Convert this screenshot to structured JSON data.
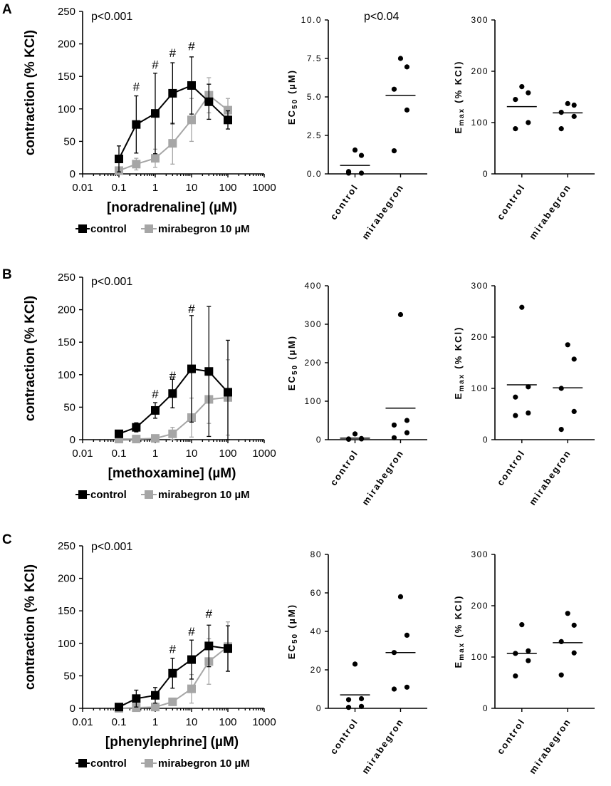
{
  "panels": [
    {
      "letter": "A",
      "curve": {
        "type": "line",
        "ylabel": "contraction (% KCl)",
        "xlabel": "[noradrenaline] (µM)",
        "xscale": "log",
        "xlim": [
          0.01,
          1000
        ],
        "ylim": [
          0,
          250
        ],
        "xticks": [
          "0.01",
          "0.1",
          "1",
          "10",
          "100",
          "1000"
        ],
        "yticks": [
          "0",
          "50",
          "100",
          "150",
          "200",
          "250"
        ],
        "pvalue": "p<0.001",
        "legend": [
          "control",
          "mirabegron 10 µM"
        ],
        "series": [
          {
            "name": "control",
            "color": "#000000",
            "x": [
              0.1,
              0.3,
              1,
              3,
              10,
              30,
              100
            ],
            "y": [
              23,
              76,
              93,
              124,
              136,
              111,
              83
            ],
            "err": [
              20,
              44,
              62,
              47,
              44,
              27,
              14
            ]
          },
          {
            "name": "mirabegron 10 µM",
            "color": "#a6a6a6",
            "x": [
              0.1,
              0.3,
              1,
              3,
              10,
              30,
              100
            ],
            "y": [
              5,
              15,
              24,
              47,
              83,
              121,
              98
            ],
            "err": [
              5,
              9,
              14,
              32,
              33,
              27,
              18
            ]
          }
        ],
        "hash_marker": "#",
        "hash_at": [
          0.3,
          1,
          3,
          10
        ],
        "hash_y": [
          128,
          162,
          180,
          190
        ]
      },
      "ec50": {
        "type": "scatter",
        "ylabel_main": "EC",
        "ylabel_sub": "50",
        "ylabel_unit": "(µM)",
        "ylim": [
          0,
          10
        ],
        "yticks": [
          "0.0",
          "2.5",
          "5.0",
          "7.5",
          "10.0"
        ],
        "pvalue": "p<0.04",
        "categories": [
          "control",
          "mirabegron"
        ],
        "points": [
          [
            0.05,
            0.05,
            0.15,
            1.2,
            1.55
          ],
          [
            1.5,
            4.15,
            5.5,
            6.95,
            7.5
          ]
        ],
        "means": [
          0.55,
          5.1
        ]
      },
      "emax": {
        "type": "scatter",
        "ylabel_main": "E",
        "ylabel_sub": "max",
        "ylabel_unit": "(% KCl)",
        "ylim": [
          0,
          300
        ],
        "yticks": [
          "0",
          "100",
          "200",
          "300"
        ],
        "categories": [
          "control",
          "mirabegron"
        ],
        "points": [
          [
            88,
            100,
            145,
            158,
            170
          ],
          [
            88,
            112,
            120,
            134,
            137
          ]
        ],
        "means": [
          131,
          119
        ]
      }
    },
    {
      "letter": "B",
      "curve": {
        "type": "line",
        "ylabel": "contraction (% KCl)",
        "xlabel": "[methoxamine] (µM)",
        "xscale": "log",
        "xlim": [
          0.01,
          1000
        ],
        "ylim": [
          0,
          250
        ],
        "xticks": [
          "0.01",
          "0.1",
          "1",
          "10",
          "100",
          "1000"
        ],
        "yticks": [
          "0",
          "50",
          "100",
          "150",
          "200",
          "250"
        ],
        "pvalue": "p<0.001",
        "legend": [
          "control",
          "mirabegron 10 µM"
        ],
        "series": [
          {
            "name": "control",
            "color": "#000000",
            "x": [
              0.1,
              0.3,
              1,
              3,
              10,
              30,
              100
            ],
            "y": [
              9,
              19,
              45,
              71,
              109,
              105,
              73
            ],
            "err": [
              5,
              7,
              12,
              22,
              82,
              100,
              80
            ]
          },
          {
            "name": "mirabegron 10 µM",
            "color": "#a6a6a6",
            "x": [
              0.1,
              0.3,
              1,
              3,
              10,
              30,
              100
            ],
            "y": [
              1,
              1,
              2,
              9,
              34,
              62,
              65
            ],
            "err": [
              1,
              1,
              3,
              10,
              30,
              37,
              58
            ]
          }
        ],
        "hash_marker": "#",
        "hash_at": [
          1,
          3,
          10
        ],
        "hash_y": [
          64,
          92,
          195
        ]
      },
      "ec50": {
        "type": "scatter",
        "ylabel_main": "EC",
        "ylabel_sub": "50",
        "ylabel_unit": "(µM)",
        "ylim": [
          0,
          400
        ],
        "yticks": [
          "0",
          "100",
          "200",
          "300",
          "400"
        ],
        "categories": [
          "control",
          "mirabegron"
        ],
        "points": [
          [
            1,
            2,
            2,
            3,
            15
          ],
          [
            5,
            18,
            38,
            50,
            325
          ]
        ],
        "means": [
          4,
          82
        ]
      },
      "emax": {
        "type": "scatter",
        "ylabel_main": "E",
        "ylabel_sub": "max",
        "ylabel_unit": "(% KCl)",
        "ylim": [
          0,
          300
        ],
        "yticks": [
          "0",
          "100",
          "200",
          "300"
        ],
        "categories": [
          "control",
          "mirabegron"
        ],
        "points": [
          [
            47,
            52,
            83,
            103,
            258
          ],
          [
            20,
            55,
            100,
            157,
            185
          ]
        ],
        "means": [
          107,
          101
        ]
      }
    },
    {
      "letter": "C",
      "curve": {
        "type": "line",
        "ylabel": "contraction (% KCl)",
        "xlabel": "[phenylephrine] (µM)",
        "xscale": "log",
        "xlim": [
          0.01,
          1000
        ],
        "ylim": [
          0,
          250
        ],
        "xticks": [
          "0.01",
          "0.1",
          "1",
          "10",
          "100",
          "1000"
        ],
        "yticks": [
          "0",
          "50",
          "100",
          "150",
          "200",
          "250"
        ],
        "pvalue": "p<0.001",
        "legend": [
          "control",
          "mirabegron 10 µM"
        ],
        "series": [
          {
            "name": "control",
            "color": "#000000",
            "x": [
              0.1,
              0.3,
              1,
              3,
              10,
              30,
              100
            ],
            "y": [
              2,
              15,
              20,
              54,
              75,
              96,
              92
            ],
            "err": [
              5,
              13,
              12,
              23,
              30,
              32,
              35
            ]
          },
          {
            "name": "mirabegron 10 µM",
            "color": "#a6a6a6",
            "x": [
              0.1,
              0.3,
              1,
              3,
              10,
              30,
              100
            ],
            "y": [
              0,
              1,
              2,
              10,
              30,
              72,
              95
            ],
            "err": [
              1,
              1,
              3,
              5,
              22,
              35,
              38
            ]
          }
        ],
        "hash_marker": "#",
        "hash_at": [
          3,
          10,
          30
        ],
        "hash_y": [
          85,
          112,
          139
        ]
      },
      "ec50": {
        "type": "scatter",
        "ylabel_main": "EC",
        "ylabel_sub": "50",
        "ylabel_unit": "(µM)",
        "ylim": [
          0,
          80
        ],
        "yticks": [
          "0",
          "20",
          "40",
          "60",
          "80"
        ],
        "categories": [
          "control",
          "mirabegron"
        ],
        "points": [
          [
            0.5,
            1,
            4.5,
            5,
            23
          ],
          [
            10,
            11,
            29,
            38,
            58
          ]
        ],
        "means": [
          7,
          29
        ]
      },
      "emax": {
        "type": "scatter",
        "ylabel_main": "E",
        "ylabel_sub": "max",
        "ylabel_unit": "(% KCl)",
        "ylim": [
          0,
          300
        ],
        "yticks": [
          "0",
          "100",
          "200",
          "300"
        ],
        "categories": [
          "control",
          "mirabegron"
        ],
        "points": [
          [
            63,
            93,
            107,
            112,
            163
          ],
          [
            65,
            108,
            130,
            162,
            185
          ]
        ],
        "means": [
          107,
          128
        ]
      }
    }
  ]
}
